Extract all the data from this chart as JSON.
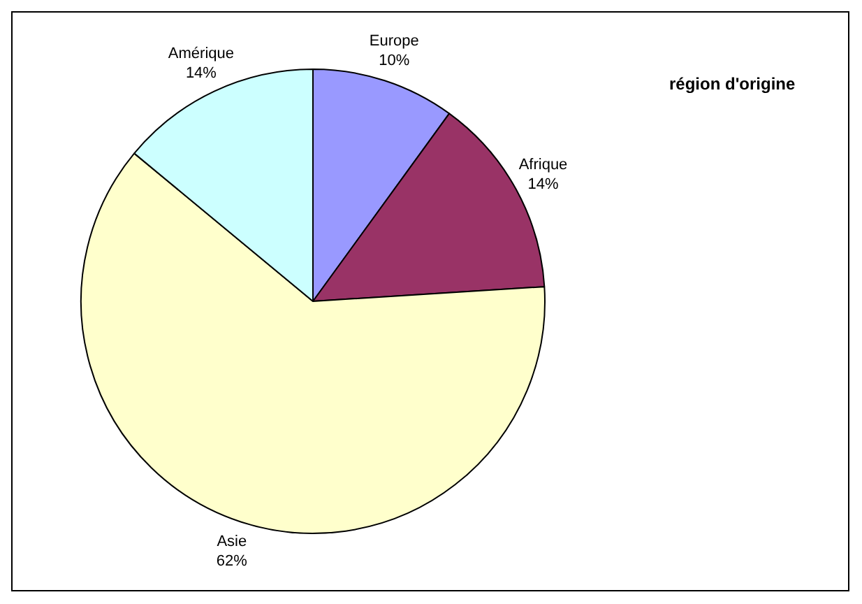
{
  "chart_data": {
    "type": "pie",
    "title": "région d'origine",
    "categories": [
      "Europe",
      "Afrique",
      "Asie",
      "Amérique"
    ],
    "values": [
      10,
      14,
      62,
      14
    ],
    "value_labels": [
      "10%",
      "14%",
      "62%",
      "14%"
    ],
    "colors": [
      "#9999ff",
      "#993366",
      "#ffffcc",
      "#ccffff"
    ],
    "legend": false
  }
}
